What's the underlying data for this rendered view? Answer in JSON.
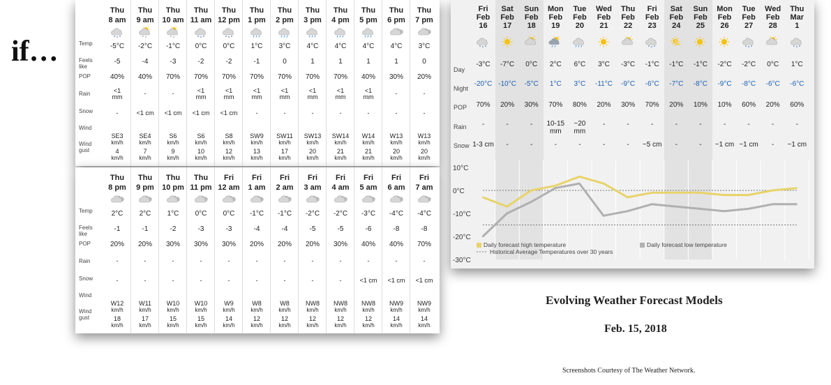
{
  "intro_word": "if…",
  "hourly_labels": {
    "temp": "Temp",
    "feels": [
      "Feels",
      "like"
    ],
    "pop": "POP",
    "rain": "Rain",
    "snow": "Snow",
    "wind": "Wind",
    "gust": [
      "Wind",
      "gust"
    ]
  },
  "hourly1": [
    {
      "d": "Thu",
      "h": "8 am",
      "icon": "snow-cloud-icon",
      "t": "-5°C",
      "f": "-5",
      "p": "40%",
      "r": [
        "<1",
        "mm"
      ],
      "s": "-",
      "w": [
        "SE3",
        "km/h"
      ],
      "g": [
        "4",
        "km/h"
      ]
    },
    {
      "d": "Thu",
      "h": "9 am",
      "icon": "partly-cloudy-icon",
      "t": "-2°C",
      "f": "-4",
      "p": "40%",
      "r": [
        "-",
        ""
      ],
      "s": "<1 cm",
      "w": [
        "SE4",
        "km/h"
      ],
      "g": [
        "7",
        "km/h"
      ]
    },
    {
      "d": "Thu",
      "h": "10 am",
      "icon": "partly-cloudy-icon",
      "t": "-1°C",
      "f": "-3",
      "p": "70%",
      "r": [
        "-",
        ""
      ],
      "s": "<1 cm",
      "w": [
        "S6",
        "km/h"
      ],
      "g": [
        "9",
        "km/h"
      ]
    },
    {
      "d": "Thu",
      "h": "11 am",
      "icon": "snow-cloud-icon",
      "t": "0°C",
      "f": "-2",
      "p": "70%",
      "r": [
        "<1",
        "mm"
      ],
      "s": "<1 cm",
      "w": [
        "S6",
        "km/h"
      ],
      "g": [
        "10",
        "km/h"
      ]
    },
    {
      "d": "Thu",
      "h": "12 pm",
      "icon": "snow-cloud-icon",
      "t": "0°C",
      "f": "-2",
      "p": "70%",
      "r": [
        "<1",
        "mm"
      ],
      "s": "<1 cm",
      "w": [
        "S8",
        "km/h"
      ],
      "g": [
        "12",
        "km/h"
      ]
    },
    {
      "d": "Thu",
      "h": "1 pm",
      "icon": "rain-cloud-icon",
      "t": "1°C",
      "f": "-1",
      "p": "70%",
      "r": [
        "<1",
        "mm"
      ],
      "s": "-",
      "w": [
        "SW9",
        "km/h"
      ],
      "g": [
        "13",
        "km/h"
      ]
    },
    {
      "d": "Thu",
      "h": "2 pm",
      "icon": "rain-cloud-icon",
      "t": "3°C",
      "f": "0",
      "p": "70%",
      "r": [
        "<1",
        "mm"
      ],
      "s": "-",
      "w": [
        "SW11",
        "km/h"
      ],
      "g": [
        "17",
        "km/h"
      ]
    },
    {
      "d": "Thu",
      "h": "3 pm",
      "icon": "rain-cloud-icon",
      "t": "4°C",
      "f": "1",
      "p": "70%",
      "r": [
        "<1",
        "mm"
      ],
      "s": "-",
      "w": [
        "SW13",
        "km/h"
      ],
      "g": [
        "20",
        "km/h"
      ]
    },
    {
      "d": "Thu",
      "h": "4 pm",
      "icon": "rain-cloud-icon",
      "t": "4°C",
      "f": "1",
      "p": "70%",
      "r": [
        "<1",
        "mm"
      ],
      "s": "-",
      "w": [
        "SW14",
        "km/h"
      ],
      "g": [
        "21",
        "km/h"
      ]
    },
    {
      "d": "Thu",
      "h": "5 pm",
      "icon": "rain-cloud-icon",
      "t": "4°C",
      "f": "1",
      "p": "40%",
      "r": [
        "<1",
        "mm"
      ],
      "s": "-",
      "w": [
        "W14",
        "km/h"
      ],
      "g": [
        "21",
        "km/h"
      ]
    },
    {
      "d": "Thu",
      "h": "6 pm",
      "icon": "cloudy-icon",
      "t": "4°C",
      "f": "1",
      "p": "30%",
      "r": [
        "-",
        ""
      ],
      "s": "-",
      "w": [
        "W13",
        "km/h"
      ],
      "g": [
        "20",
        "km/h"
      ]
    },
    {
      "d": "Thu",
      "h": "7 pm",
      "icon": "cloudy-icon",
      "t": "3°C",
      "f": "0",
      "p": "20%",
      "r": [
        "-",
        ""
      ],
      "s": "-",
      "w": [
        "W13",
        "km/h"
      ],
      "g": [
        "20",
        "km/h"
      ]
    }
  ],
  "hourly2": [
    {
      "d": "Thu",
      "h": "8 pm",
      "icon": "cloudy-icon",
      "t": "2°C",
      "f": "-1",
      "p": "20%",
      "r": [
        "-",
        ""
      ],
      "s": "-",
      "w": [
        "W12",
        "km/h"
      ],
      "g": [
        "18",
        "km/h"
      ]
    },
    {
      "d": "Thu",
      "h": "9 pm",
      "icon": "cloudy-icon",
      "t": "2°C",
      "f": "-1",
      "p": "20%",
      "r": [
        "-",
        ""
      ],
      "s": "-",
      "w": [
        "W11",
        "km/h"
      ],
      "g": [
        "17",
        "km/h"
      ]
    },
    {
      "d": "Thu",
      "h": "10 pm",
      "icon": "cloudy-icon",
      "t": "1°C",
      "f": "-2",
      "p": "30%",
      "r": [
        "-",
        ""
      ],
      "s": "-",
      "w": [
        "W10",
        "km/h"
      ],
      "g": [
        "15",
        "km/h"
      ]
    },
    {
      "d": "Thu",
      "h": "11 pm",
      "icon": "cloudy-icon",
      "t": "0°C",
      "f": "-3",
      "p": "30%",
      "r": [
        "-",
        ""
      ],
      "s": "-",
      "w": [
        "W10",
        "km/h"
      ],
      "g": [
        "15",
        "km/h"
      ]
    },
    {
      "d": "Fri",
      "h": "12 am",
      "icon": "cloudy-icon",
      "t": "0°C",
      "f": "-3",
      "p": "30%",
      "r": [
        "-",
        ""
      ],
      "s": "-",
      "w": [
        "W9",
        "km/h"
      ],
      "g": [
        "14",
        "km/h"
      ]
    },
    {
      "d": "Fri",
      "h": "1 am",
      "icon": "cloudy-icon",
      "t": "-1°C",
      "f": "-4",
      "p": "20%",
      "r": [
        "-",
        ""
      ],
      "s": "-",
      "w": [
        "W8",
        "km/h"
      ],
      "g": [
        "12",
        "km/h"
      ]
    },
    {
      "d": "Fri",
      "h": "2 am",
      "icon": "cloudy-icon",
      "t": "-1°C",
      "f": "-4",
      "p": "20%",
      "r": [
        "-",
        ""
      ],
      "s": "-",
      "w": [
        "W8",
        "km/h"
      ],
      "g": [
        "12",
        "km/h"
      ]
    },
    {
      "d": "Fri",
      "h": "3 am",
      "icon": "cloudy-icon",
      "t": "-2°C",
      "f": "-5",
      "p": "20%",
      "r": [
        "-",
        ""
      ],
      "s": "-",
      "w": [
        "NW8",
        "km/h"
      ],
      "g": [
        "12",
        "km/h"
      ]
    },
    {
      "d": "Fri",
      "h": "4 am",
      "icon": "cloudy-icon",
      "t": "-2°C",
      "f": "-5",
      "p": "30%",
      "r": [
        "-",
        ""
      ],
      "s": "-",
      "w": [
        "NW8",
        "km/h"
      ],
      "g": [
        "12",
        "km/h"
      ]
    },
    {
      "d": "Fri",
      "h": "5 am",
      "icon": "cloudy-icon",
      "t": "-3°C",
      "f": "-6",
      "p": "40%",
      "r": [
        "-",
        ""
      ],
      "s": "<1 cm",
      "w": [
        "NW8",
        "km/h"
      ],
      "g": [
        "12",
        "km/h"
      ]
    },
    {
      "d": "Fri",
      "h": "6 am",
      "icon": "cloudy-icon",
      "t": "-4°C",
      "f": "-8",
      "p": "40%",
      "r": [
        "-",
        ""
      ],
      "s": "<1 cm",
      "w": [
        "NW9",
        "km/h"
      ],
      "g": [
        "14",
        "km/h"
      ]
    },
    {
      "d": "Fri",
      "h": "7 am",
      "icon": "cloudy-icon",
      "t": "-4°C",
      "f": "-8",
      "p": "70%",
      "r": [
        "-",
        ""
      ],
      "s": "<1 cm",
      "w": [
        "NW9",
        "km/h"
      ],
      "g": [
        "14",
        "km/h"
      ]
    }
  ],
  "daily_labels": {
    "day": "Day",
    "night": "Night",
    "pop": "POP",
    "rain": "Rain",
    "snow": "Snow"
  },
  "daily": [
    {
      "d": "Fri",
      "m": "Feb",
      "n": "16",
      "icon": "snow-cloud-icon",
      "day": "-3°C",
      "night": "-20°C",
      "p": "70%",
      "r": [
        "-",
        ""
      ],
      "s": "1-3 cm",
      "shade": false
    },
    {
      "d": "Sat",
      "m": "Feb",
      "n": "17",
      "icon": "sun-icon",
      "day": "-7°C",
      "night": "-10°C",
      "p": "20%",
      "r": [
        "-",
        ""
      ],
      "s": "-",
      "shade": true
    },
    {
      "d": "Sun",
      "m": "Feb",
      "n": "18",
      "icon": "sun-cloud-icon",
      "day": "0°C",
      "night": "-5°C",
      "p": "30%",
      "r": [
        "-",
        ""
      ],
      "s": "-",
      "shade": true
    },
    {
      "d": "Mon",
      "m": "Feb",
      "n": "19",
      "icon": "rain-sun-icon",
      "day": "2°C",
      "night": "1°C",
      "p": "70%",
      "r": [
        "10-15",
        "mm"
      ],
      "s": "-",
      "shade": false
    },
    {
      "d": "Tue",
      "m": "Feb",
      "n": "20",
      "icon": "rain-cloud-icon",
      "day": "6°C",
      "night": "3°C",
      "p": "80%",
      "r": [
        "~20",
        "mm"
      ],
      "s": "-",
      "shade": false
    },
    {
      "d": "Wed",
      "m": "Feb",
      "n": "21",
      "icon": "sun-icon",
      "day": "3°C",
      "night": "-11°C",
      "p": "20%",
      "r": [
        "-",
        ""
      ],
      "s": "-",
      "shade": false
    },
    {
      "d": "Thu",
      "m": "Feb",
      "n": "22",
      "icon": "sun-cloud-icon",
      "day": "-3°C",
      "night": "-9°C",
      "p": "30%",
      "r": [
        "-",
        ""
      ],
      "s": "-",
      "shade": false
    },
    {
      "d": "Fri",
      "m": "Feb",
      "n": "23",
      "icon": "snow-cloud-icon",
      "day": "-1°C",
      "night": "-6°C",
      "p": "70%",
      "r": [
        "-",
        ""
      ],
      "s": "~5 cm",
      "shade": false
    },
    {
      "d": "Sat",
      "m": "Feb",
      "n": "24",
      "icon": "moon-sun-icon",
      "day": "-1°C",
      "night": "-7°C",
      "p": "20%",
      "r": [
        "-",
        ""
      ],
      "s": "-",
      "shade": true
    },
    {
      "d": "Sun",
      "m": "Feb",
      "n": "25",
      "icon": "sun-icon",
      "day": "-1°C",
      "night": "-8°C",
      "p": "10%",
      "r": [
        "-",
        ""
      ],
      "s": "-",
      "shade": true
    },
    {
      "d": "Mon",
      "m": "Feb",
      "n": "26",
      "icon": "sun-icon",
      "day": "-2°C",
      "night": "-9°C",
      "p": "10%",
      "r": [
        "-",
        ""
      ],
      "s": "~1 cm",
      "shade": false
    },
    {
      "d": "Tue",
      "m": "Feb",
      "n": "27",
      "icon": "snow-cloud-icon",
      "day": "-2°C",
      "night": "-8°C",
      "p": "60%",
      "r": [
        "-",
        ""
      ],
      "s": "~1 cm",
      "shade": false
    },
    {
      "d": "Wed",
      "m": "Feb",
      "n": "28",
      "icon": "sun-cloud-icon",
      "day": "0°C",
      "night": "-6°C",
      "p": "20%",
      "r": [
        "-",
        ""
      ],
      "s": "-",
      "shade": false
    },
    {
      "d": "Thu",
      "m": "Mar",
      "n": "1",
      "icon": "snow-cloud-icon",
      "day": "1°C",
      "night": "-6°C",
      "p": "60%",
      "r": [
        "-",
        ""
      ],
      "s": "~1 cm",
      "shade": false
    }
  ],
  "chart_data": {
    "type": "line",
    "x": [
      "Feb 16",
      "Feb 17",
      "Feb 18",
      "Feb 19",
      "Feb 20",
      "Feb 21",
      "Feb 22",
      "Feb 23",
      "Feb 24",
      "Feb 25",
      "Feb 26",
      "Feb 27",
      "Feb 28",
      "Mar 1"
    ],
    "yticks": [
      "10°C",
      "0°C",
      "-10°C",
      "-20°C",
      "-30°C"
    ],
    "ylim": [
      -30,
      10
    ],
    "series": [
      {
        "name": "Daily forecast high temperature",
        "color": "#e8d36a",
        "values": [
          -3,
          -7,
          0,
          2,
          6,
          3,
          -3,
          -1,
          -1,
          -1,
          -2,
          -2,
          0,
          1
        ]
      },
      {
        "name": "Daily forecast low temperature",
        "color": "#b0b0b0",
        "values": [
          -20,
          -10,
          -5,
          1,
          3,
          -11,
          -9,
          -6,
          -7,
          -8,
          -9,
          -8,
          -6,
          -6
        ]
      }
    ],
    "reference_lines": {
      "name": "Historical Average Temperatures over 30 years",
      "values": [
        0,
        -15
      ]
    }
  },
  "footer": {
    "title": "Evolving Weather Forecast Models",
    "date": "Feb. 15, 2018",
    "credit": "Screenshots Courtesy of The Weather Network."
  }
}
